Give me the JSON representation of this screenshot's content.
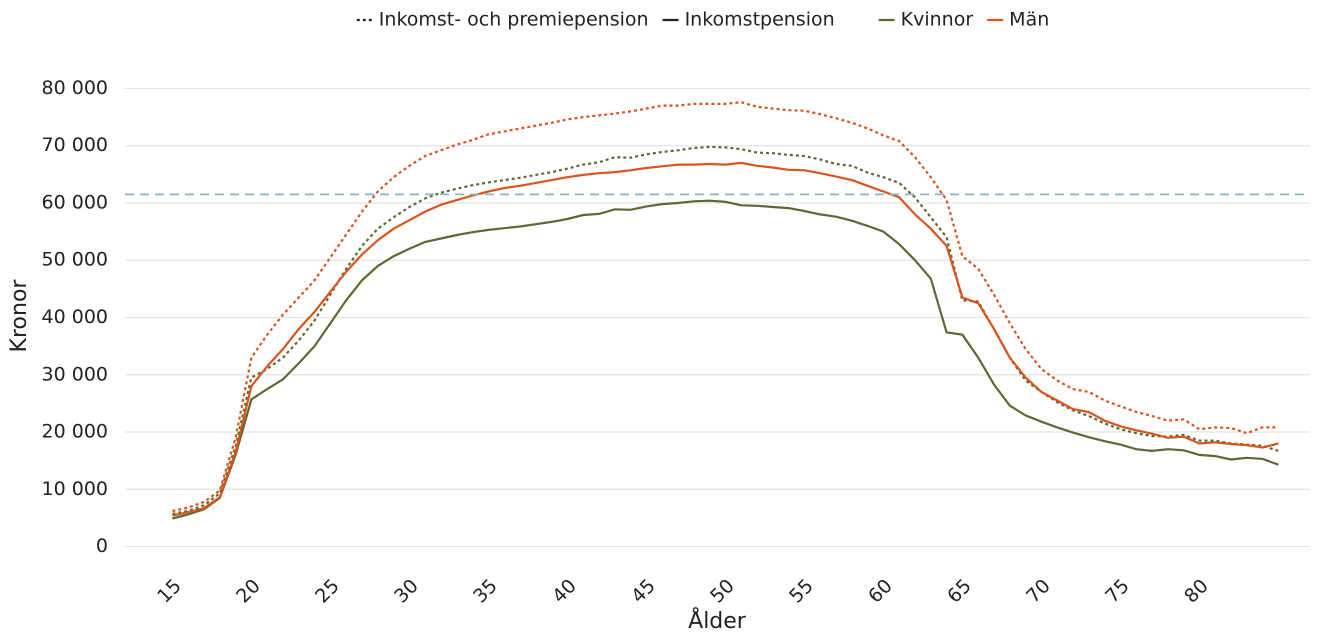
{
  "chart_data": {
    "type": "line",
    "xlabel": "Ålder",
    "ylabel": "Kronor",
    "x": [
      15,
      16,
      17,
      18,
      19,
      20,
      21,
      22,
      23,
      24,
      25,
      26,
      27,
      28,
      29,
      30,
      31,
      32,
      33,
      34,
      35,
      36,
      37,
      38,
      39,
      40,
      41,
      42,
      43,
      44,
      45,
      46,
      47,
      48,
      49,
      50,
      51,
      52,
      53,
      54,
      55,
      56,
      57,
      58,
      59,
      60,
      61,
      62,
      63,
      64,
      65,
      66,
      67,
      68,
      69,
      70,
      71,
      72,
      73,
      74,
      75,
      76,
      77,
      78,
      79,
      80,
      81,
      82,
      83,
      84,
      85
    ],
    "linetypes": [
      {
        "name": "Inkomst- och premiepension",
        "dash": "dotted"
      },
      {
        "name": "Inkomstpension",
        "dash": "solid"
      }
    ],
    "series": [
      {
        "name": "Kvinnor",
        "color": "#5b6a32",
        "dash": "dotted",
        "values": [
          5700,
          6200,
          7200,
          9300,
          17500,
          29500,
          31000,
          33000,
          36000,
          39500,
          44000,
          48500,
          52500,
          55500,
          57500,
          59300,
          60800,
          61800,
          62500,
          63100,
          63600,
          64000,
          64400,
          64900,
          65400,
          66000,
          66700,
          67100,
          68000,
          67900,
          68500,
          68900,
          69200,
          69600,
          69800,
          69700,
          69400,
          68800,
          68700,
          68400,
          68200,
          67600,
          66800,
          66500,
          65300,
          64500,
          63500,
          61000,
          57500,
          54000,
          43000,
          42800,
          38000,
          33000,
          29000,
          27000,
          25200,
          23800,
          22800,
          21500,
          20500,
          19800,
          19300,
          19200,
          19500,
          18500,
          18500,
          18000,
          17800,
          17600,
          16700
        ]
      },
      {
        "name": "Män",
        "color": "#d9541e",
        "dash": "dotted",
        "values": [
          6200,
          6800,
          7800,
          9800,
          19000,
          33000,
          37000,
          40500,
          43500,
          46500,
          50500,
          54500,
          58500,
          62000,
          64500,
          66500,
          68200,
          69200,
          70200,
          71000,
          72000,
          72500,
          73000,
          73500,
          74000,
          74600,
          75000,
          75300,
          75600,
          76000,
          76500,
          77000,
          77000,
          77300,
          77300,
          77300,
          77600,
          76800,
          76500,
          76200,
          76100,
          75500,
          74800,
          74000,
          73000,
          71800,
          70800,
          68000,
          64500,
          60500,
          50700,
          48500,
          44000,
          39000,
          34500,
          31000,
          29000,
          27500,
          27000,
          25500,
          24500,
          23500,
          22800,
          22000,
          22200,
          20500,
          20800,
          20700,
          19800,
          20800,
          20800
        ]
      },
      {
        "name": "Kvinnor",
        "color": "#5b6a32",
        "dash": "solid",
        "values": [
          4900,
          5600,
          6500,
          8500,
          16000,
          25700,
          27500,
          29200,
          32000,
          35000,
          39000,
          43000,
          46500,
          49000,
          50700,
          52000,
          53200,
          53800,
          54400,
          54900,
          55300,
          55600,
          55900,
          56300,
          56700,
          57200,
          57900,
          58100,
          58900,
          58800,
          59400,
          59800,
          60000,
          60300,
          60400,
          60200,
          59600,
          59500,
          59300,
          59100,
          58600,
          58000,
          57600,
          56900,
          56000,
          55000,
          52800,
          50000,
          46800,
          37400,
          37000,
          33000,
          28300,
          24600,
          22900,
          21800,
          20800,
          19900,
          19100,
          18400,
          17800,
          17000,
          16700,
          17000,
          16800,
          16000,
          15800,
          15200,
          15500,
          15300,
          14300
        ]
      },
      {
        "name": "Män",
        "color": "#d9541e",
        "dash": "solid",
        "values": [
          5400,
          6000,
          6700,
          8600,
          16500,
          28000,
          31500,
          34500,
          38000,
          41000,
          44500,
          48000,
          51000,
          53500,
          55500,
          57000,
          58500,
          59700,
          60500,
          61300,
          62000,
          62600,
          63000,
          63500,
          64000,
          64500,
          64900,
          65200,
          65400,
          65700,
          66100,
          66400,
          66700,
          66700,
          66800,
          66700,
          67000,
          66500,
          66200,
          65800,
          65700,
          65200,
          64600,
          64000,
          63000,
          62000,
          61000,
          58000,
          55500,
          52500,
          43500,
          42500,
          38000,
          33000,
          29500,
          27000,
          25500,
          24000,
          23500,
          22000,
          21000,
          20300,
          19700,
          19000,
          19200,
          18000,
          18200,
          17900,
          17700,
          17300,
          18000
        ]
      }
    ],
    "reference_line": {
      "value": 61500,
      "color": "#8fb3c2"
    },
    "xlim": [
      12,
      87
    ],
    "ylim": [
      -2000,
      82000
    ],
    "xticks": [
      15,
      20,
      25,
      30,
      35,
      40,
      45,
      50,
      55,
      60,
      65,
      70,
      75,
      80
    ],
    "yticks": [
      {
        "value": 0,
        "label": "0"
      },
      {
        "value": 10000,
        "label": "10 000"
      },
      {
        "value": 20000,
        "label": "20 000"
      },
      {
        "value": 30000,
        "label": "30 000"
      },
      {
        "value": 40000,
        "label": "40 000"
      },
      {
        "value": 50000,
        "label": "50 000"
      },
      {
        "value": 60000,
        "label": "60 000"
      },
      {
        "value": 70000,
        "label": "70 000"
      },
      {
        "value": 80000,
        "label": "80 000"
      }
    ],
    "grid": true
  }
}
